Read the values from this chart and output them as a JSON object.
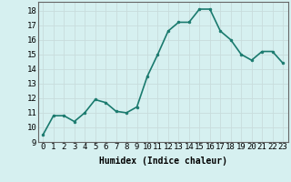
{
  "x": [
    0,
    1,
    2,
    3,
    4,
    5,
    6,
    7,
    8,
    9,
    10,
    11,
    12,
    13,
    14,
    15,
    16,
    17,
    18,
    19,
    20,
    21,
    22,
    23
  ],
  "y": [
    9.5,
    10.8,
    10.8,
    10.4,
    11.0,
    11.9,
    11.7,
    11.1,
    11.0,
    11.4,
    13.5,
    15.0,
    16.6,
    17.2,
    17.2,
    18.1,
    18.1,
    16.6,
    16.0,
    15.0,
    14.6,
    15.2,
    15.2,
    14.4
  ],
  "line_color": "#1a7a6e",
  "marker": "o",
  "marker_size": 2.0,
  "bg_color": "#d6f0f0",
  "grid_color": "#c8dcdc",
  "xlabel": "Humidex (Indice chaleur)",
  "xlim": [
    -0.5,
    23.5
  ],
  "ylim": [
    9,
    18.6
  ],
  "yticks": [
    9,
    10,
    11,
    12,
    13,
    14,
    15,
    16,
    17,
    18
  ],
  "xticks": [
    0,
    1,
    2,
    3,
    4,
    5,
    6,
    7,
    8,
    9,
    10,
    11,
    12,
    13,
    14,
    15,
    16,
    17,
    18,
    19,
    20,
    21,
    22,
    23
  ],
  "xlabel_fontsize": 7,
  "tick_fontsize": 6.5,
  "line_width": 1.2
}
